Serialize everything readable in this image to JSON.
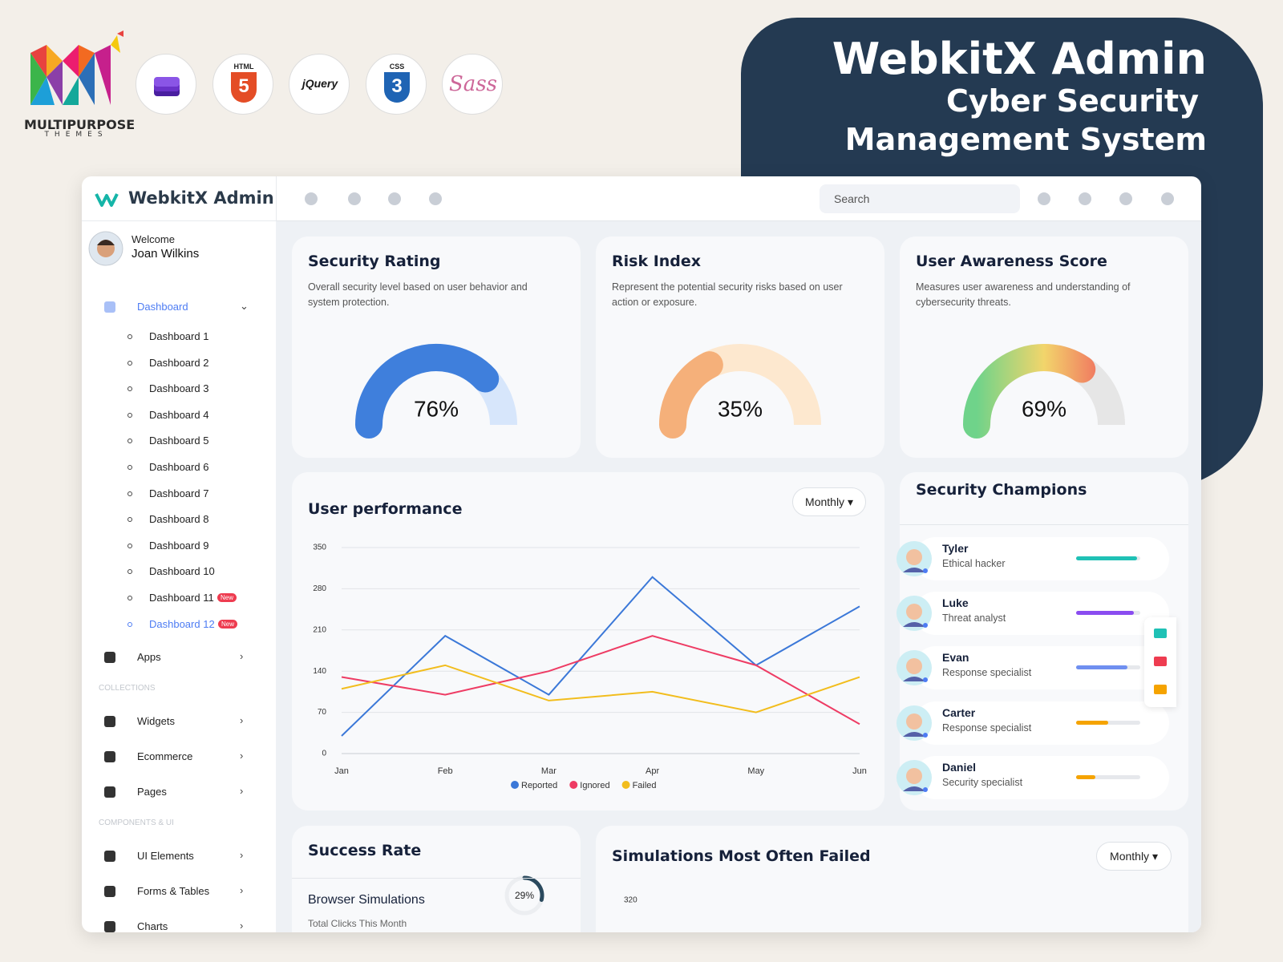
{
  "branding": {
    "logo_text": "MULTIPURPOSE",
    "logo_subtext": "THEMES",
    "html": "HTML",
    "html_version": "5",
    "jquery": "jQuery",
    "css": "CSS",
    "css_version": "3",
    "sass": "Sass"
  },
  "hero": {
    "title": "WebkitX Admin",
    "lines": [
      "Cyber Security",
      "Management System"
    ]
  },
  "sidebar": {
    "brand": "WebkitX Admin",
    "welcome": "Welcome",
    "user": "Joan Wilkins",
    "menu": [
      {
        "label": "Dashboard",
        "active": true,
        "expanded": true
      },
      {
        "label": "Dashboard 1",
        "sub": true
      },
      {
        "label": "Dashboard 2",
        "sub": true
      },
      {
        "label": "Dashboard 3",
        "sub": true
      },
      {
        "label": "Dashboard 4",
        "sub": true
      },
      {
        "label": "Dashboard 5",
        "sub": true
      },
      {
        "label": "Dashboard 6",
        "sub": true
      },
      {
        "label": "Dashboard 7",
        "sub": true
      },
      {
        "label": "Dashboard 8",
        "sub": true
      },
      {
        "label": "Dashboard 9",
        "sub": true
      },
      {
        "label": "Dashboard 10",
        "sub": true
      },
      {
        "label": "Dashboard 11",
        "sub": true,
        "badge": "New"
      },
      {
        "label": "Dashboard 12",
        "sub": true,
        "badge": "New",
        "active": true
      },
      {
        "label": "Apps"
      },
      {
        "section": "COLLECTIONS"
      },
      {
        "label": "Widgets"
      },
      {
        "label": "Ecommerce"
      },
      {
        "label": "Pages"
      },
      {
        "section": "COMPONENTS & UI"
      },
      {
        "label": "UI Elements"
      },
      {
        "label": "Forms & Tables"
      },
      {
        "label": "Charts"
      }
    ]
  },
  "header": {
    "search": "Search"
  },
  "gauges": [
    {
      "title": "Security Rating",
      "description": "Overall security level based on user behavior and system protection.",
      "value": 76,
      "value_label": "76%",
      "colors": [
        "#3f7fdc"
      ],
      "track_color": "#d7e6fb"
    },
    {
      "title": "Risk Index",
      "description": "Represent the potential security risks based on user action or exposure.",
      "value": 35,
      "value_label": "35%",
      "colors": [
        "#f5b07a"
      ],
      "track_color": "#fde8cf"
    },
    {
      "title": "User Awareness Score",
      "description": "Measures user awareness and understanding of cybersecurity threats.",
      "value": 69,
      "value_label": "69%",
      "colors": [
        "#6fd38a",
        "#f2d56b",
        "#f0605e"
      ],
      "track_color": "#e6e6e6"
    }
  ],
  "chart_data": {
    "type": "line",
    "title": "User performance",
    "dropdown": "Monthly",
    "categories": [
      "Jan",
      "Feb",
      "Mar",
      "Apr",
      "May",
      "Jun"
    ],
    "series": [
      {
        "name": "Reported",
        "color": "#3b78d8",
        "values": [
          30,
          200,
          100,
          300,
          150,
          250
        ]
      },
      {
        "name": "Ignored",
        "color": "#ee3c64",
        "values": [
          130,
          100,
          140,
          200,
          150,
          50
        ]
      },
      {
        "name": "Failed",
        "color": "#f2bd1d",
        "values": [
          110,
          150,
          90,
          105,
          70,
          130
        ]
      }
    ],
    "ylim": [
      0,
      350
    ],
    "yticks": [
      0,
      70,
      140,
      210,
      280,
      350
    ],
    "grid": true
  },
  "champions": {
    "title": "Security Champions",
    "people": [
      {
        "name": "Tyler",
        "role": "Ethical hacker",
        "value": 95,
        "color": "#1fc1b5"
      },
      {
        "name": "Luke",
        "role": "Threat analyst",
        "value": 90,
        "color": "#8a4cf0"
      },
      {
        "name": "Evan",
        "role": "Response specialist",
        "value": 80,
        "color": "#6f8ff0"
      },
      {
        "name": "Carter",
        "role": "Response specialist",
        "value": 50,
        "color": "#f5a300"
      },
      {
        "name": "Daniel",
        "role": "Security specialist",
        "value": 30,
        "color": "#f5a300"
      }
    ]
  },
  "success_rate": {
    "title": "Success Rate",
    "item": "Browser Simulations",
    "subtitle": "Total Clicks This Month",
    "value": 29,
    "value_label": "29%"
  },
  "simulations": {
    "title": "Simulations Most Often Failed",
    "dropdown": "Monthly",
    "ytick": 320
  }
}
